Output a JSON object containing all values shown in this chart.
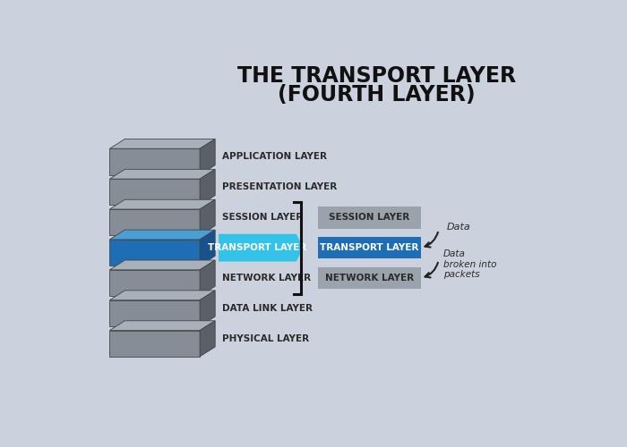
{
  "title_line1": "THE TRANSPORT LAYER",
  "title_line2": "(FOURTH LAYER)",
  "bg_color": "#ccd2dd",
  "layers": [
    "APPLICATION LAYER",
    "PRESENTATION LAYER",
    "SESSION LAYER",
    "TRANSPORT LAYER",
    "NETWORK LAYER",
    "DATA LINK LAYER",
    "PHYSICAL LAYER"
  ],
  "layer_colors_front": [
    "#868d96",
    "#868d96",
    "#868d96",
    "#1e6eb5",
    "#868d96",
    "#868d96",
    "#868d96"
  ],
  "layer_colors_top": [
    "#a8b0ba",
    "#a8b0ba",
    "#a8b0ba",
    "#4a9fd4",
    "#a8b0ba",
    "#a8b0ba",
    "#a8b0ba"
  ],
  "layer_colors_side": [
    "#5a6068",
    "#5a6068",
    "#5a6068",
    "#17538a",
    "#5a6068",
    "#5a6068",
    "#5a6068"
  ],
  "transport_label_color": "#33c0e8",
  "right_boxes": [
    "SESSION LAYER",
    "TRANSPORT LAYER",
    "NETWORK LAYER"
  ],
  "right_box_colors": [
    "#9aa2ab",
    "#1e6eb5",
    "#9aa2ab"
  ],
  "right_box_text_colors": [
    "#2a2a2a",
    "#ffffff",
    "#2a2a2a"
  ],
  "annotation1": "Data",
  "annotation2": "Data\nbroken into\npackets"
}
